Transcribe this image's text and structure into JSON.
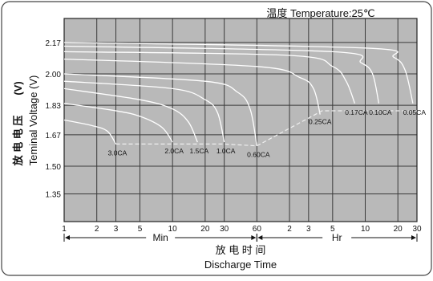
{
  "chart_data": {
    "type": "line",
    "title": "温度 Temperature:25℃",
    "ylabel_cn": "放 电 电 压",
    "ylabel_unit": "(V)",
    "ylabel_en": "Teminal Voltage (V)",
    "xlabel_cn": "放 电 时 间",
    "xlabel_en": "Discharge Time",
    "y_ticks": [
      "2.17",
      "2.00",
      "1.83",
      "1.67",
      "1.50",
      "1.35"
    ],
    "y_tick_values": [
      2.17,
      2.0,
      1.83,
      1.67,
      1.5,
      1.35
    ],
    "ylim": [
      1.2,
      2.3
    ],
    "x_ticks": [
      {
        "label": "1",
        "min": 1
      },
      {
        "label": "2",
        "min": 2
      },
      {
        "label": "3",
        "min": 3
      },
      {
        "label": "5",
        "min": 5
      },
      {
        "label": "10",
        "min": 10
      },
      {
        "label": "20",
        "min": 20
      },
      {
        "label": "30",
        "min": 30
      },
      {
        "label": "60",
        "min": 60
      },
      {
        "label": "2",
        "min": 120
      },
      {
        "label": "3",
        "min": 180
      },
      {
        "label": "5",
        "min": 300
      },
      {
        "label": "10",
        "min": 600
      },
      {
        "label": "20",
        "min": 1200
      },
      {
        "label": "30",
        "min": 1800
      }
    ],
    "x_units": [
      {
        "label": "Min",
        "from_min": 1,
        "to_min": 60
      },
      {
        "label": "Hr",
        "from_min": 60,
        "to_min": 1800
      }
    ],
    "x_scale": "log",
    "grid": true,
    "series": [
      {
        "name": "3.0CA",
        "points": [
          [
            1,
            1.75
          ],
          [
            1.8,
            1.72
          ],
          [
            2.5,
            1.69
          ],
          [
            3,
            1.62
          ]
        ]
      },
      {
        "name": "2.0CA",
        "points": [
          [
            1,
            1.84
          ],
          [
            3,
            1.8
          ],
          [
            5,
            1.77
          ],
          [
            8,
            1.71
          ],
          [
            10,
            1.63
          ]
        ]
      },
      {
        "name": "1.5CA",
        "points": [
          [
            1,
            1.92
          ],
          [
            5,
            1.86
          ],
          [
            10,
            1.81
          ],
          [
            14,
            1.74
          ],
          [
            17,
            1.63
          ]
        ]
      },
      {
        "name": "1.0CA",
        "points": [
          [
            1,
            1.96
          ],
          [
            10,
            1.92
          ],
          [
            20,
            1.86
          ],
          [
            26,
            1.79
          ],
          [
            30,
            1.63
          ]
        ]
      },
      {
        "name": "0.60CA",
        "points": [
          [
            1,
            2.0
          ],
          [
            20,
            1.96
          ],
          [
            40,
            1.9
          ],
          [
            52,
            1.81
          ],
          [
            60,
            1.61
          ]
        ]
      },
      {
        "name": "0.25CA",
        "points": [
          [
            1,
            2.08
          ],
          [
            60,
            2.04
          ],
          [
            150,
            1.98
          ],
          [
            200,
            1.92
          ],
          [
            230,
            1.78
          ]
        ]
      },
      {
        "name": "0.17CA",
        "points": [
          [
            1,
            2.12
          ],
          [
            120,
            2.1
          ],
          [
            300,
            2.04
          ],
          [
            400,
            1.96
          ],
          [
            480,
            1.84
          ]
        ]
      },
      {
        "name": "0.10CA",
        "points": [
          [
            1,
            2.15
          ],
          [
            300,
            2.12
          ],
          [
            550,
            2.06
          ],
          [
            700,
            2.0
          ],
          [
            800,
            1.84
          ]
        ]
      },
      {
        "name": "0.05CA",
        "points": [
          [
            1,
            2.17
          ],
          [
            600,
            2.14
          ],
          [
            1100,
            2.09
          ],
          [
            1400,
            2.02
          ],
          [
            1650,
            1.84
          ]
        ]
      }
    ],
    "cutoff_line": [
      [
        3,
        1.62
      ],
      [
        30,
        1.62
      ],
      [
        60,
        1.61
      ],
      [
        240,
        1.8
      ],
      [
        1800,
        1.8
      ]
    ]
  }
}
